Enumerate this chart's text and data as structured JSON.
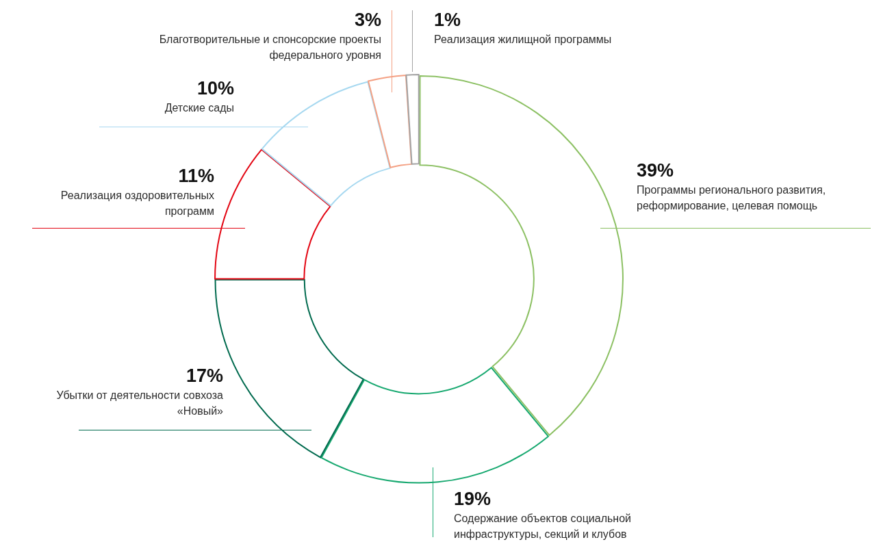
{
  "chart_data": {
    "type": "donut",
    "categories": [
      "Программы регионального развития, реформирование,  целевая помощь",
      "Содержание объектов социальной инфраструктуры,  секций и клубов",
      "Убытки от деятельности совхоза «Новый»",
      "Реализация оздоровительных программ",
      "Детские сады",
      "Благотворительные и спонсорские проекты федерального уровня",
      "Реализация жилищной программы"
    ],
    "values": [
      39,
      19,
      17,
      11,
      10,
      3,
      1
    ],
    "value_labels": [
      "39%",
      "19%",
      "17%",
      "11%",
      "10%",
      "3%",
      "1%"
    ],
    "colors": [
      "#8cc063",
      "#16a86f",
      "#006a4e",
      "#e30613",
      "#a6d8f0",
      "#f4a083",
      "#a3a3a3"
    ],
    "legend": false
  }
}
